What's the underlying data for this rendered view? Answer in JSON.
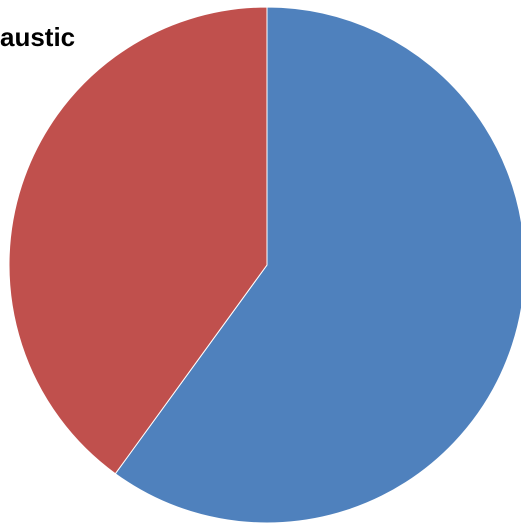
{
  "chart_data": {
    "type": "pie",
    "title": "austic",
    "slices": [
      {
        "value": 60,
        "color": "#4F81BD"
      },
      {
        "value": 40,
        "color": "#C0504D"
      }
    ],
    "start_angle_deg": 0,
    "direction": "clockwise"
  }
}
